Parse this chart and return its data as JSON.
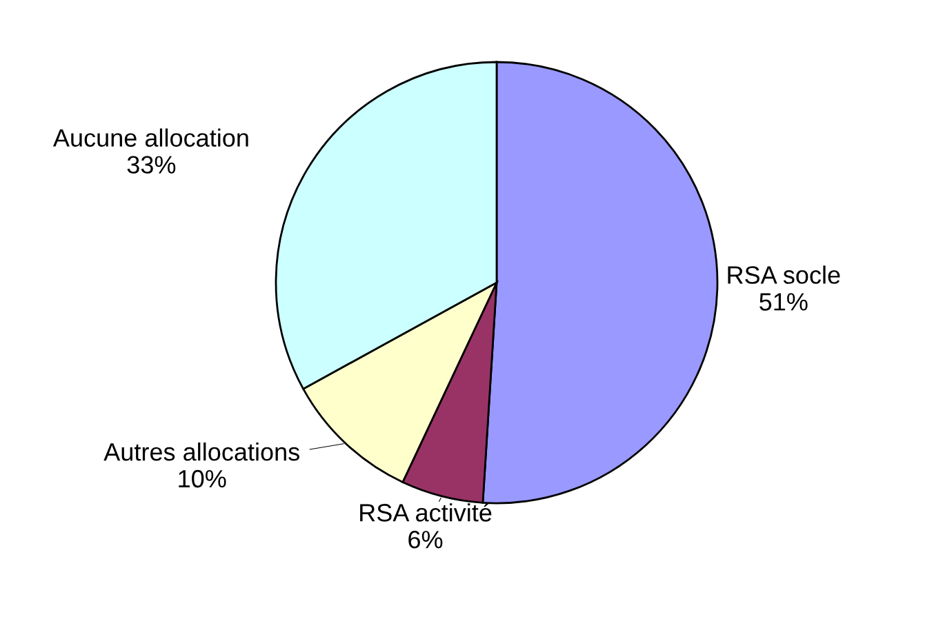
{
  "chart_data": {
    "type": "pie",
    "categories": [
      "RSA socle",
      "RSA activité",
      "Autres allocations",
      "Aucune allocation"
    ],
    "values": [
      51,
      6,
      10,
      33
    ],
    "value_labels": [
      "51%",
      "6%",
      "10%",
      "33%"
    ],
    "colors": [
      "#9999ff",
      "#993366",
      "#ffffcc",
      "#ccffff"
    ],
    "legend": false
  }
}
